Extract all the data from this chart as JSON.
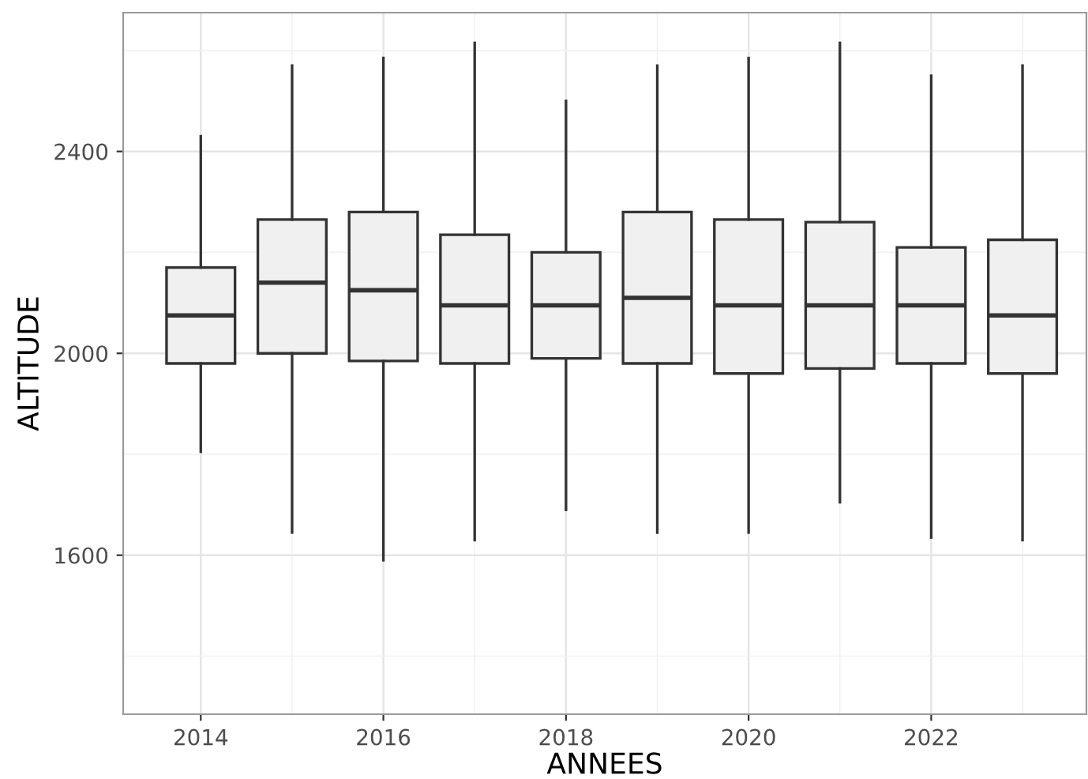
{
  "chart_data": {
    "type": "box",
    "xlabel": "ANNEES",
    "ylabel": "ALTITUDE",
    "x": [
      2014,
      2015,
      2016,
      2017,
      2018,
      2019,
      2020,
      2021,
      2022,
      2023
    ],
    "boxes": [
      {
        "low": 1805,
        "q1": 1980,
        "median": 2075,
        "q3": 2170,
        "high": 2430
      },
      {
        "low": 1645,
        "q1": 2000,
        "median": 2140,
        "q3": 2265,
        "high": 2570
      },
      {
        "low": 1590,
        "q1": 1985,
        "median": 2125,
        "q3": 2280,
        "high": 2585
      },
      {
        "low": 1630,
        "q1": 1980,
        "median": 2095,
        "q3": 2235,
        "high": 2615
      },
      {
        "low": 1690,
        "q1": 1990,
        "median": 2095,
        "q3": 2200,
        "high": 2500
      },
      {
        "low": 1645,
        "q1": 1980,
        "median": 2110,
        "q3": 2280,
        "high": 2570
      },
      {
        "low": 1645,
        "q1": 1960,
        "median": 2095,
        "q3": 2265,
        "high": 2585
      },
      {
        "low": 1705,
        "q1": 1970,
        "median": 2095,
        "q3": 2260,
        "high": 2615
      },
      {
        "low": 1635,
        "q1": 1980,
        "median": 2095,
        "q3": 2210,
        "high": 2550
      },
      {
        "low": 1630,
        "q1": 1960,
        "median": 2075,
        "q3": 2225,
        "high": 2570
      }
    ],
    "color": "#f0f0f0",
    "xlim": [
      2013.15,
      2023.7
    ],
    "xticks": [
      2014,
      {
        "value": 2015,
        "label": null
      },
      2016,
      {
        "value": 2017,
        "label": null
      },
      2018,
      {
        "value": 2019,
        "label": null
      },
      2020,
      {
        "value": 2021,
        "label": null
      },
      2022,
      {
        "value": 2023,
        "label": null
      }
    ],
    "ylim": [
      1285,
      2675
    ],
    "yticks": [
      {
        "value": 1400,
        "label": null
      },
      1600,
      {
        "value": 1800,
        "label": null
      },
      2000,
      {
        "value": 2200,
        "label": null
      },
      2400,
      {
        "value": 2600,
        "label": null
      }
    ],
    "grid": true
  }
}
